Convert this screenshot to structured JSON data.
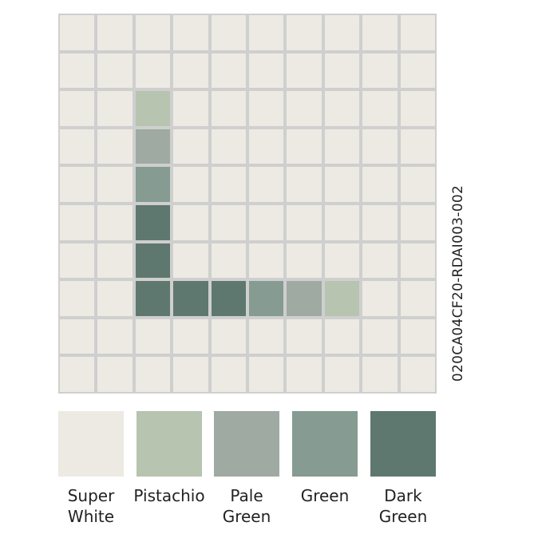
{
  "product_code": "020CA04CF20-RDAI003-002",
  "colors": [
    {
      "key": "W",
      "name_line1": "Super",
      "name_line2": "White",
      "hex": "#eceae3"
    },
    {
      "key": "P",
      "name_line1": "Pistachio",
      "name_line2": "",
      "hex": "#b7c4b0"
    },
    {
      "key": "L",
      "name_line1": "Pale",
      "name_line2": "Green",
      "hex": "#9faaa2"
    },
    {
      "key": "G",
      "name_line1": "Green",
      "name_line2": "",
      "hex": "#869b91"
    },
    {
      "key": "D",
      "name_line1": "Dark",
      "name_line2": "Green",
      "hex": "#5f786f"
    }
  ],
  "grout_color": "#cfcfcf",
  "pattern": [
    "WWWWWWWWWW",
    "WWWWWWWWWW",
    "WWPWWWWWWW",
    "WWLWWWWWWW",
    "WWGWWWWWWW",
    "WWDWWWWWWW",
    "WWDWWWWWWW",
    "WWDDDGLPWW",
    "WWWWWWWWWW",
    "WWWWWWWWWW"
  ]
}
